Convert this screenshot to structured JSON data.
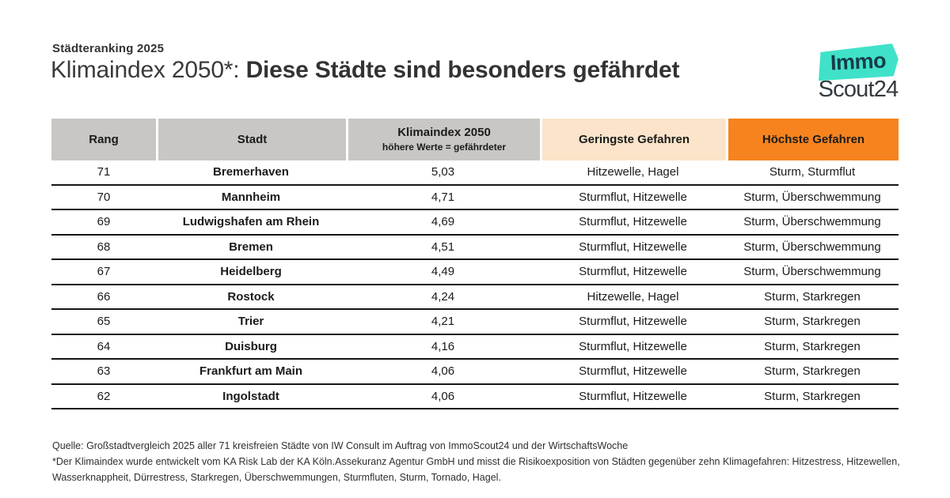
{
  "header": {
    "eyebrow": "Städteranking 2025",
    "title_regular": "Klimaindex 2050*: ",
    "title_bold": "Diese Städte sind besonders gefährdet"
  },
  "logo": {
    "badge_text": "Immo",
    "name": "Scout24",
    "badge_color": "#3fe2c8"
  },
  "table": {
    "columns": [
      {
        "label": "Rang",
        "sublabel": "",
        "bg": "#c8c7c4"
      },
      {
        "label": "Stadt",
        "sublabel": "",
        "bg": "#c8c7c4"
      },
      {
        "label": "Klimaindex 2050",
        "sublabel": "höhere Werte = gefährdeter",
        "bg": "#c8c7c4"
      },
      {
        "label": "Geringste Gefahren",
        "sublabel": "",
        "bg": "#fbe4c9"
      },
      {
        "label": "Höchste Gefahren",
        "sublabel": "",
        "bg": "#f6831e"
      }
    ]
  },
  "chart_data": {
    "type": "table",
    "title": "Klimaindex 2050*: Diese Städte sind besonders gefährdet",
    "columns": [
      "Rang",
      "Stadt",
      "Klimaindex 2050 (höhere Werte = gefährdeter)",
      "Geringste Gefahren",
      "Höchste Gefahren"
    ],
    "rows": [
      [
        "71",
        "Bremerhaven",
        "5,03",
        "Hitzewelle, Hagel",
        "Sturm, Sturmflut"
      ],
      [
        "70",
        "Mannheim",
        "4,71",
        "Sturmflut, Hitzewelle",
        "Sturm, Überschwemmung"
      ],
      [
        "69",
        "Ludwigshafen am Rhein",
        "4,69",
        "Sturmflut, Hitzewelle",
        "Sturm, Überschwemmung"
      ],
      [
        "68",
        "Bremen",
        "4,51",
        "Sturmflut, Hitzewelle",
        "Sturm, Überschwemmung"
      ],
      [
        "67",
        "Heidelberg",
        "4,49",
        "Sturmflut, Hitzewelle",
        "Sturm, Überschwemmung"
      ],
      [
        "66",
        "Rostock",
        "4,24",
        "Hitzewelle, Hagel",
        "Sturm, Starkregen"
      ],
      [
        "65",
        "Trier",
        "4,21",
        "Sturmflut, Hitzewelle",
        "Sturm, Starkregen"
      ],
      [
        "64",
        "Duisburg",
        "4,16",
        "Sturmflut, Hitzewelle",
        "Sturm, Starkregen"
      ],
      [
        "63",
        "Frankfurt am Main",
        "4,06",
        "Sturmflut, Hitzewelle",
        "Sturm, Starkregen"
      ],
      [
        "62",
        "Ingolstadt",
        "4,06",
        "Sturmflut, Hitzewelle",
        "Sturm, Starkregen"
      ]
    ]
  },
  "footer": {
    "line1": "Quelle: Großstadtvergleich 2025 aller 71 kreisfreien Städte von IW Consult im Auftrag von ImmoScout24 und der WirtschaftsWoche",
    "line2": "*Der Klimaindex wurde entwickelt vom KA Risk Lab der KA Köln.Assekuranz Agentur GmbH und misst die Risikoexposition von Städten gegenüber zehn Klimagefahren: Hitzestress, Hitzewellen,",
    "line3": "Wasserknappheit, Dürrestress, Starkregen, Überschwemmungen, Sturmfluten, Sturm, Tornado, Hagel."
  }
}
